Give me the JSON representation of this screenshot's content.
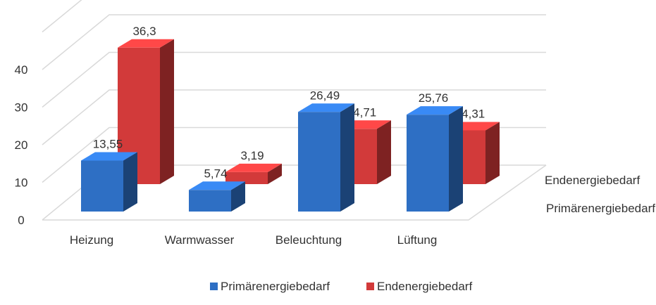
{
  "chart_data": {
    "type": "bar",
    "categories": [
      "Heizung",
      "Warmwasser",
      "Beleuchtung",
      "Lüftung"
    ],
    "series": [
      {
        "name": "Primärenergiebedarf",
        "values": [
          13.55,
          5.74,
          26.49,
          25.76
        ],
        "labels": [
          "13,55",
          "5,74",
          "26,49",
          "25,76"
        ],
        "color": "#2e6fc4"
      },
      {
        "name": "Endenergiebedarf",
        "values": [
          36.3,
          3.19,
          14.71,
          14.31
        ],
        "labels": [
          "36,3",
          "3,19",
          "14,71",
          "14,31"
        ],
        "color": "#d23a3a"
      }
    ],
    "yticks": [
      0,
      10,
      20,
      30,
      40
    ],
    "ylim": [
      0,
      50
    ],
    "grid": true,
    "legend": "bottom",
    "title": "",
    "xlabel": "",
    "ylabel": ""
  }
}
